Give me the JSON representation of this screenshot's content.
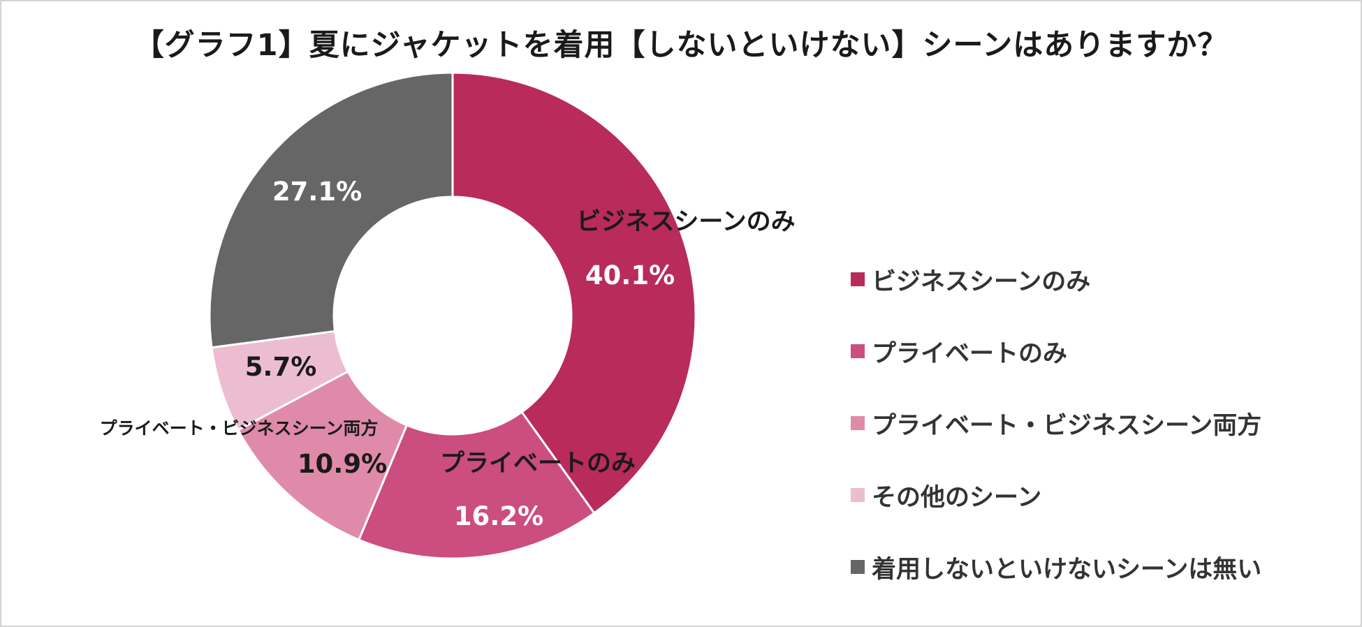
{
  "chart_data": {
    "type": "donut",
    "title": "【グラフ1】夏にジャケットを着用【しないといけない】シーンはありますか？",
    "categories": [
      "ビジネスシーンのみ",
      "プライベートのみ",
      "プライベート・ビジネスシーン両方",
      "その他のシーン",
      "着用しないといけないシーンは無い"
    ],
    "values": [
      40.1,
      16.2,
      10.9,
      5.7,
      27.1
    ],
    "value_labels": [
      "40.1%",
      "16.2%",
      "10.9%",
      "5.7%",
      "27.1%"
    ],
    "slice_labels": [
      "ビジネスシーンのみ",
      "プライベートのみ",
      "プライベート・ビジネスシーン両方",
      "",
      ""
    ],
    "colors": [
      "#b82b5a",
      "#cc4d80",
      "#df8aa9",
      "#ecbdd0",
      "#666666"
    ],
    "value_label_colors": [
      "#ffffff",
      "#ffffff",
      "#1a1a1a",
      "#1a1a1a",
      "#ffffff"
    ],
    "start_angle": "12 o'clock",
    "direction": "clockwise",
    "legend_placement": "right"
  }
}
